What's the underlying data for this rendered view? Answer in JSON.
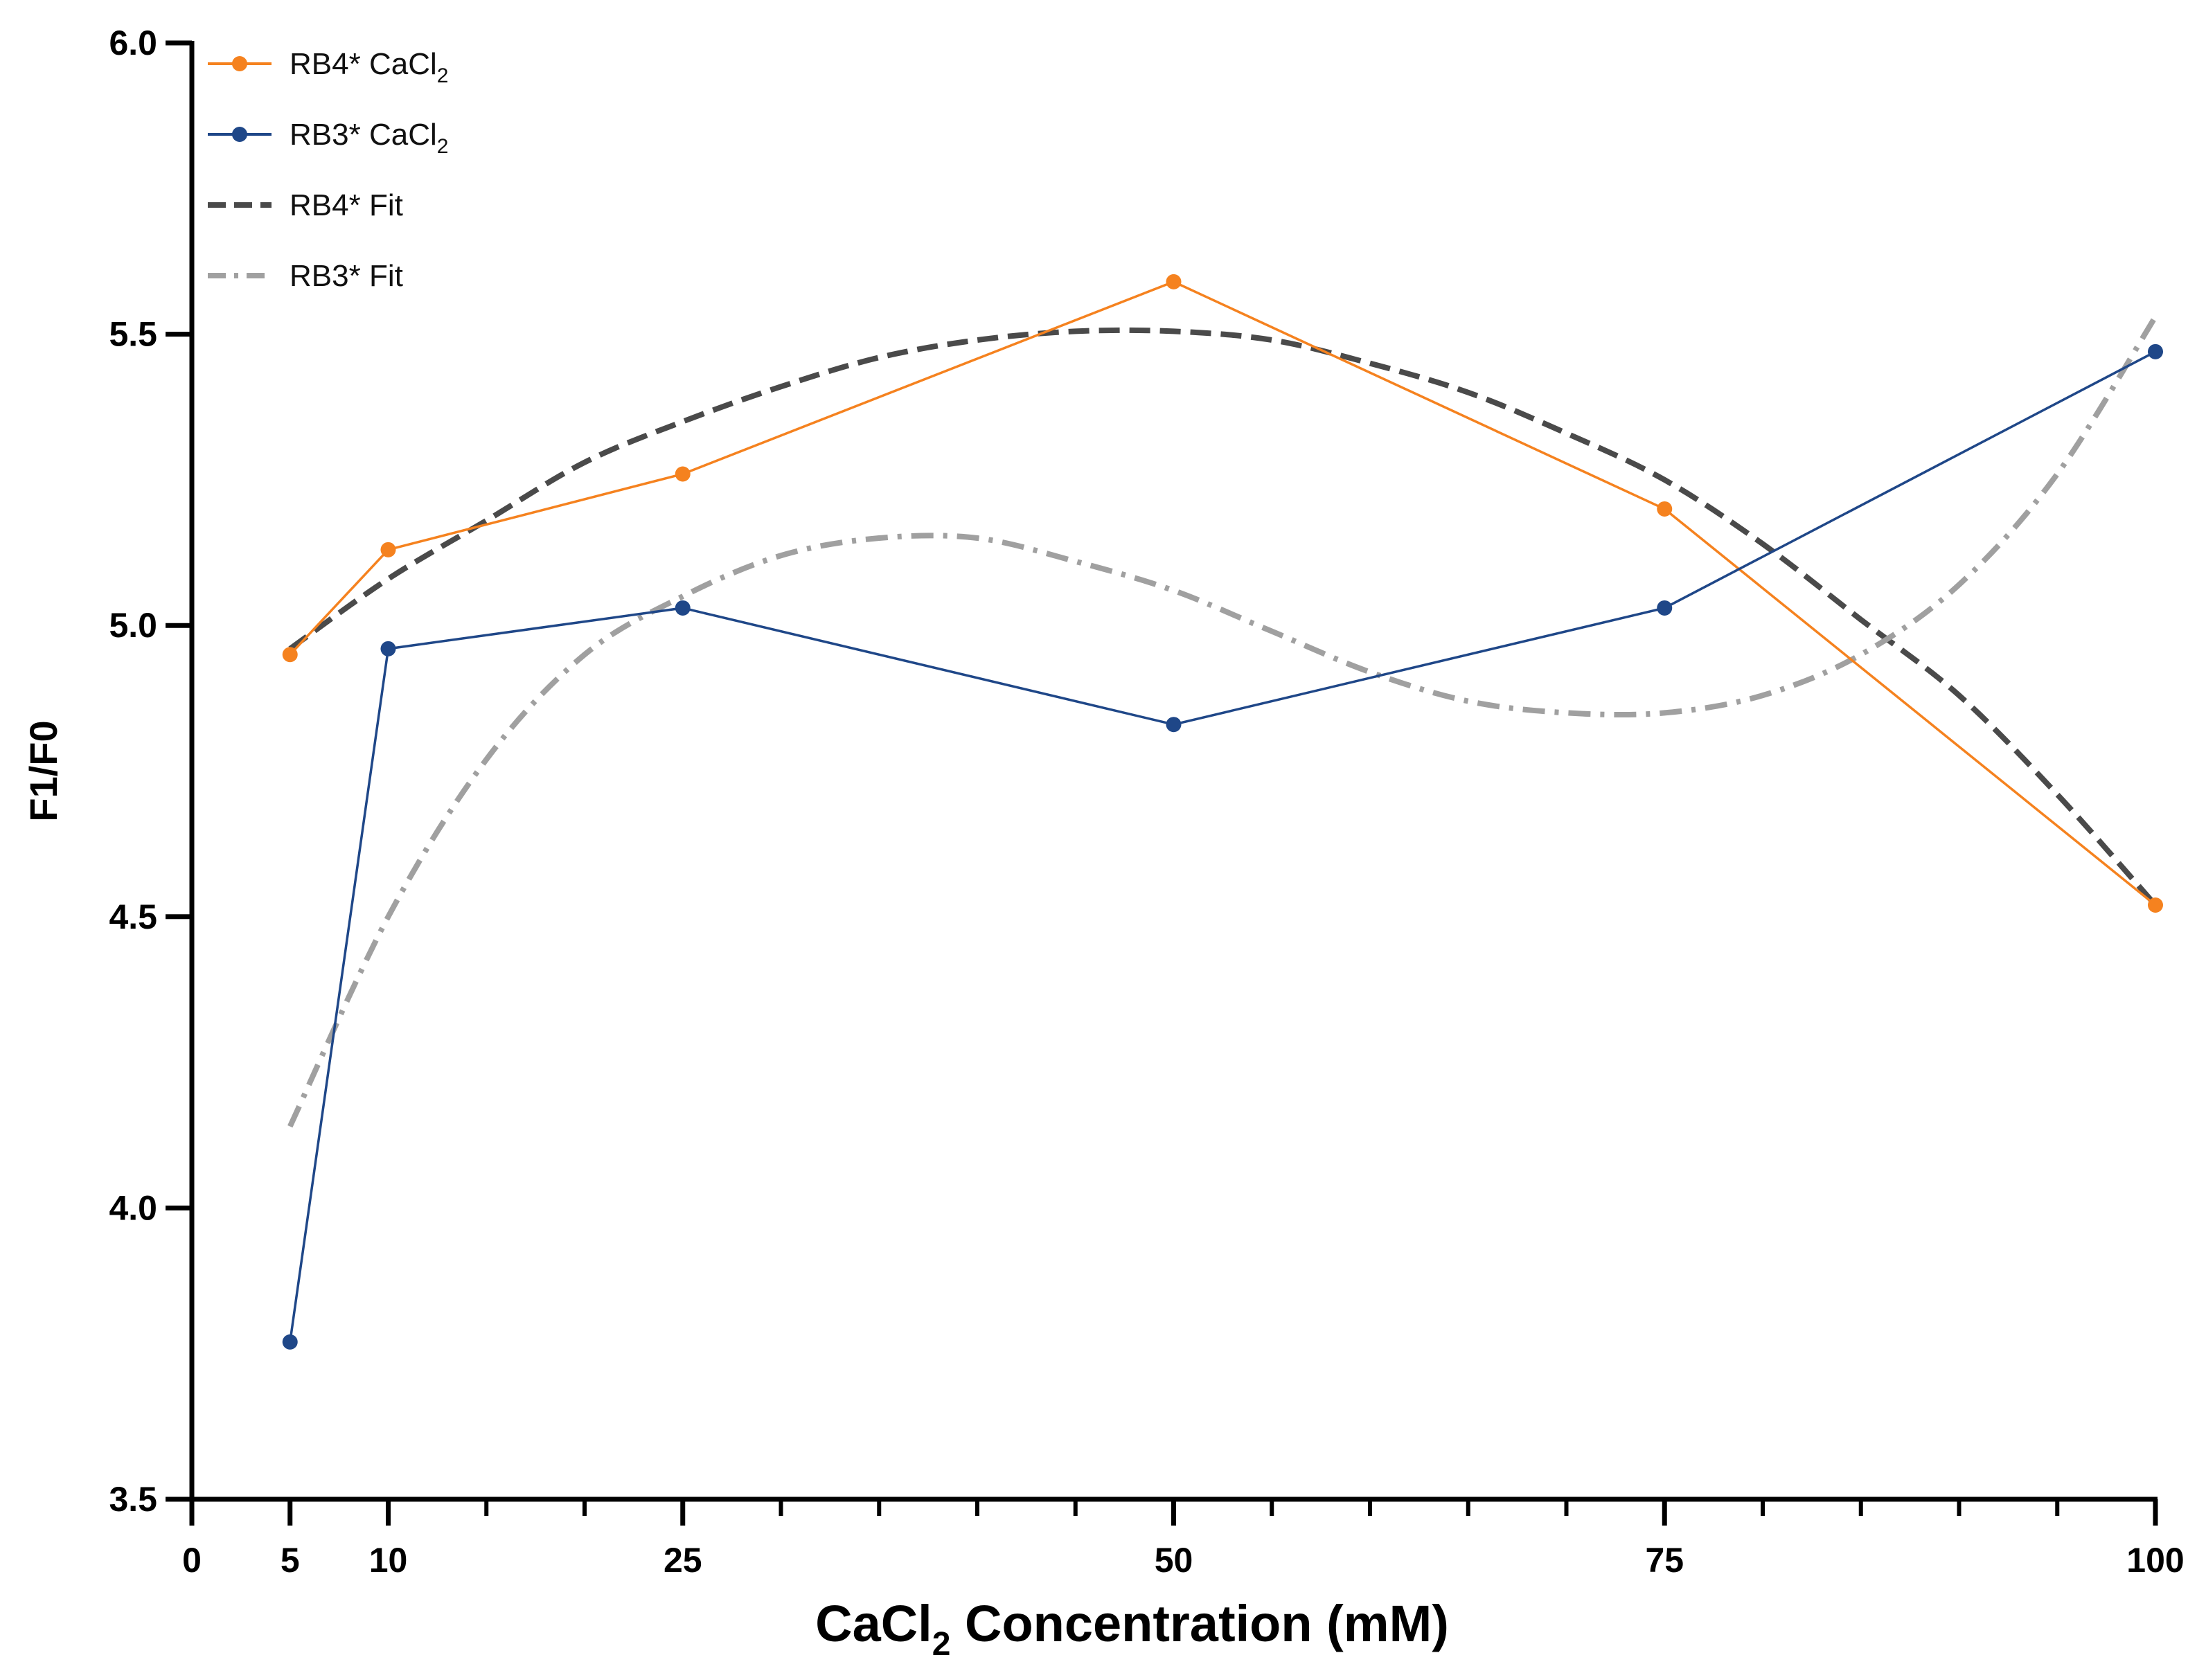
{
  "chart_data": {
    "type": "line",
    "title": "",
    "xlabel": {
      "main": "CaCl",
      "sub": "2",
      "rest": " Concentration (mM)"
    },
    "ylabel": "F1/F0",
    "xlim": [
      0,
      100
    ],
    "ylim": [
      3.5,
      6.0
    ],
    "x_ticks": [
      0,
      5,
      10,
      25,
      50,
      75,
      100
    ],
    "x_tick_labels": [
      "0",
      "5",
      "10",
      "25",
      "50",
      "75",
      "100"
    ],
    "x_minor_ticks": [
      15,
      20,
      30,
      35,
      40,
      45,
      55,
      60,
      65,
      70,
      80,
      85,
      90,
      95
    ],
    "y_ticks": [
      3.5,
      4.0,
      4.5,
      5.0,
      5.5,
      6.0
    ],
    "y_tick_labels": [
      "3.5",
      "4.0",
      "4.5",
      "5.0",
      "5.5",
      "6.0"
    ],
    "grid": false,
    "legend_position": "top-left",
    "series": [
      {
        "name": "RB4* CaCl",
        "name_sub": "2",
        "kind": "data",
        "color": "#F5821F",
        "x": [
          5,
          10,
          25,
          50,
          75,
          100
        ],
        "values": [
          4.95,
          5.13,
          5.26,
          5.59,
          5.2,
          4.52
        ]
      },
      {
        "name": "RB3* CaCl",
        "name_sub": "2",
        "kind": "data",
        "color": "#1F4788",
        "x": [
          5,
          10,
          25,
          50,
          75,
          100
        ],
        "values": [
          3.77,
          4.96,
          5.03,
          4.83,
          5.03,
          5.47
        ]
      },
      {
        "name": "RB4* Fit",
        "name_sub": "",
        "kind": "fit",
        "dash": "dash",
        "color": "#4A4A4A",
        "x": [
          5,
          10,
          15,
          20,
          25,
          30,
          35,
          40,
          45,
          50,
          55,
          60,
          65,
          70,
          75,
          80,
          85,
          90,
          95,
          100
        ],
        "values": [
          4.96,
          5.08,
          5.18,
          5.28,
          5.35,
          5.41,
          5.46,
          5.49,
          5.505,
          5.505,
          5.49,
          5.45,
          5.4,
          5.33,
          5.25,
          5.14,
          5.01,
          4.88,
          4.71,
          4.52
        ]
      },
      {
        "name": "RB3* Fit",
        "name_sub": "",
        "kind": "fit",
        "dash": "dashdot",
        "color": "#A0A0A0",
        "x": [
          5,
          10,
          15,
          20,
          25,
          30,
          35,
          40,
          45,
          50,
          55,
          60,
          65,
          70,
          75,
          80,
          85,
          90,
          95,
          100
        ],
        "values": [
          4.14,
          4.5,
          4.77,
          4.95,
          5.05,
          5.12,
          5.15,
          5.15,
          5.11,
          5.06,
          4.99,
          4.92,
          4.87,
          4.85,
          4.85,
          4.88,
          4.95,
          5.07,
          5.26,
          5.53
        ]
      }
    ]
  }
}
